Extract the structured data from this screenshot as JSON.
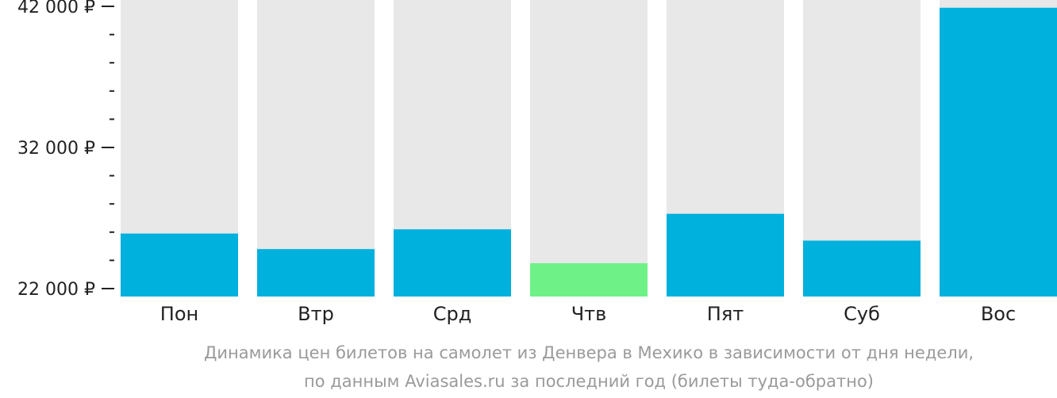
{
  "chart_data": {
    "type": "bar",
    "categories": [
      "Пон",
      "Втр",
      "Срд",
      "Чтв",
      "Пят",
      "Суб",
      "Вос"
    ],
    "values": [
      25900,
      24800,
      26200,
      23800,
      27300,
      25400,
      41900
    ],
    "highlight": [
      false,
      false,
      false,
      true,
      false,
      false,
      false
    ],
    "ylim": [
      22000,
      42000
    ],
    "major_ticks": [
      22000,
      32000,
      42000
    ],
    "major_tick_labels": [
      "22 000 ₽",
      "32 000 ₽",
      "42 000 ₽"
    ],
    "minor_tick_step": 2000,
    "grid": false,
    "colors": {
      "bar": "#00b0dd",
      "highlight": "#6ef287",
      "track": "#e8e8e8",
      "axis": "#222222"
    }
  },
  "caption": {
    "line1": "Динамика цен билетов на самолет из Денвера в Мехико в зависимости от дня недели,",
    "line2": "по данным Aviasales.ru за последний год (билеты туда-обратно)"
  }
}
